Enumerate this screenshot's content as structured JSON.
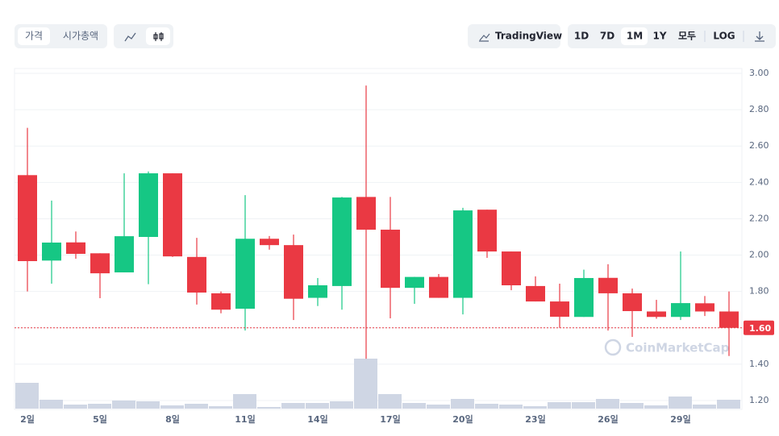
{
  "toolbar": {
    "tabs": [
      "가격",
      "시가총액"
    ],
    "tradingview": "TradingView",
    "ranges": [
      "1D",
      "7D",
      "1M",
      "1Y",
      "모두"
    ],
    "log": "LOG"
  },
  "chart_data": {
    "type": "candlestick",
    "watermark": "CoinMarketCap",
    "categories": [
      "2일",
      null,
      null,
      "5일",
      null,
      null,
      "8일",
      null,
      null,
      "11일",
      null,
      null,
      "14일",
      null,
      null,
      "17일",
      null,
      null,
      "20일",
      null,
      null,
      "23일",
      null,
      null,
      "26일",
      null,
      null,
      "29일",
      null,
      null
    ],
    "open": [
      2.44,
      1.97,
      2.07,
      2.01,
      1.905,
      2.1,
      2.45,
      1.99,
      1.79,
      1.705,
      2.09,
      2.055,
      1.765,
      1.83,
      2.32,
      2.14,
      1.82,
      1.88,
      1.765,
      2.25,
      2.02,
      1.83,
      1.745,
      1.66,
      1.875,
      1.79,
      1.69,
      1.66,
      1.735,
      1.69
    ],
    "high": [
      2.7,
      2.3,
      2.13,
      2.01,
      2.45,
      2.46,
      2.45,
      2.095,
      1.8,
      2.33,
      2.105,
      2.113,
      1.874,
      2.32,
      2.933,
      2.32,
      1.88,
      1.896,
      2.26,
      2.25,
      2.02,
      1.883,
      1.843,
      1.92,
      1.95,
      1.816,
      1.754,
      2.02,
      1.775,
      1.8
    ],
    "low": [
      1.8,
      1.843,
      1.98,
      1.763,
      1.905,
      1.84,
      1.99,
      1.728,
      1.68,
      1.585,
      2.03,
      1.643,
      1.72,
      1.7,
      1.43,
      1.652,
      1.732,
      1.765,
      1.674,
      1.985,
      1.807,
      1.745,
      1.6,
      1.66,
      1.585,
      1.55,
      1.65,
      1.643,
      1.665,
      1.445
    ],
    "close": [
      1.967,
      2.069,
      2.007,
      1.9,
      2.104,
      2.45,
      1.993,
      1.794,
      1.7,
      2.09,
      2.055,
      1.76,
      1.834,
      2.317,
      2.14,
      1.82,
      1.88,
      1.765,
      2.246,
      2.02,
      1.834,
      1.745,
      1.661,
      1.874,
      1.79,
      1.692,
      1.66,
      1.736,
      1.69,
      1.6
    ],
    "volume": [
      32,
      11,
      5,
      6,
      10,
      9,
      4,
      6,
      3,
      18,
      2,
      7,
      7,
      9,
      62,
      18,
      7,
      5,
      12,
      6,
      5,
      3,
      8,
      8,
      12,
      7,
      4,
      15,
      5,
      11
    ],
    "volume_ylim": [
      0,
      62
    ],
    "up_color": "#16c784",
    "down_color": "#ea3943",
    "volume_color": "#cfd6e4",
    "ylim": [
      1.2,
      3.0
    ],
    "yticks": [
      {
        "value": 1.2,
        "label": "1.20"
      },
      {
        "value": 1.4,
        "label": "1.40"
      },
      {
        "value": 1.6,
        "label": "1.60"
      },
      {
        "value": 1.8,
        "label": "1.80"
      },
      {
        "value": 2.0,
        "label": "2.00"
      },
      {
        "value": 2.2,
        "label": "2.20"
      },
      {
        "value": 2.4,
        "label": "2.40"
      },
      {
        "value": 2.6,
        "label": "2.60"
      },
      {
        "value": 2.8,
        "label": "2.80"
      },
      {
        "value": 3.0,
        "label": "3.00"
      }
    ],
    "current_price": {
      "value": 1.6,
      "label": "1.60"
    },
    "grid": true
  }
}
